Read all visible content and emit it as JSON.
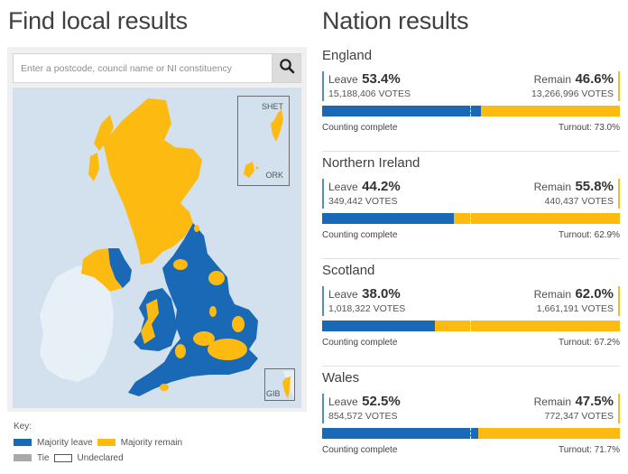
{
  "left": {
    "title": "Find local results",
    "search": {
      "placeholder": "Enter a postcode, council name or NI constituency",
      "value": "",
      "button_icon": "search-icon"
    },
    "map": {
      "insets": [
        {
          "label": "SHET"
        },
        {
          "label": "ORK"
        },
        {
          "label": "GIB"
        }
      ]
    },
    "key": {
      "title": "Key:",
      "items": [
        {
          "label": "Majority leave",
          "color": "#1a69b6"
        },
        {
          "label": "Majority remain",
          "color": "#fdbb11"
        },
        {
          "label": "Tie",
          "color": "#aaaaaa"
        },
        {
          "label": "Undeclared",
          "color": "#ffffff"
        }
      ]
    }
  },
  "right": {
    "title": "Nation results",
    "nations": [
      {
        "name": "England",
        "leave_label": "Leave",
        "leave_pct": "53.4%",
        "leave_votes": "15,188,406 VOTES",
        "remain_label": "Remain",
        "remain_pct": "46.6%",
        "remain_votes": "13,266,996 VOTES",
        "leave_value": 53.4,
        "status": "Counting complete",
        "turnout": "Turnout: 73.0%"
      },
      {
        "name": "Northern Ireland",
        "leave_label": "Leave",
        "leave_pct": "44.2%",
        "leave_votes": "349,442 VOTES",
        "remain_label": "Remain",
        "remain_pct": "55.8%",
        "remain_votes": "440,437 VOTES",
        "leave_value": 44.2,
        "status": "Counting complete",
        "turnout": "Turnout: 62.9%"
      },
      {
        "name": "Scotland",
        "leave_label": "Leave",
        "leave_pct": "38.0%",
        "leave_votes": "1,018,322 VOTES",
        "remain_label": "Remain",
        "remain_pct": "62.0%",
        "remain_votes": "1,661,191 VOTES",
        "leave_value": 38.0,
        "status": "Counting complete",
        "turnout": "Turnout: 67.2%"
      },
      {
        "name": "Wales",
        "leave_label": "Leave",
        "leave_pct": "52.5%",
        "leave_votes": "854,572 VOTES",
        "remain_label": "Remain",
        "remain_pct": "47.5%",
        "remain_votes": "772,347 VOTES",
        "leave_value": 52.5,
        "status": "Counting complete",
        "turnout": "Turnout: 71.7%"
      }
    ]
  },
  "colors": {
    "leave": "#1a69b6",
    "remain": "#fdbb11",
    "sea": "#d2e1ed",
    "ireland": "#e8f0f7"
  }
}
